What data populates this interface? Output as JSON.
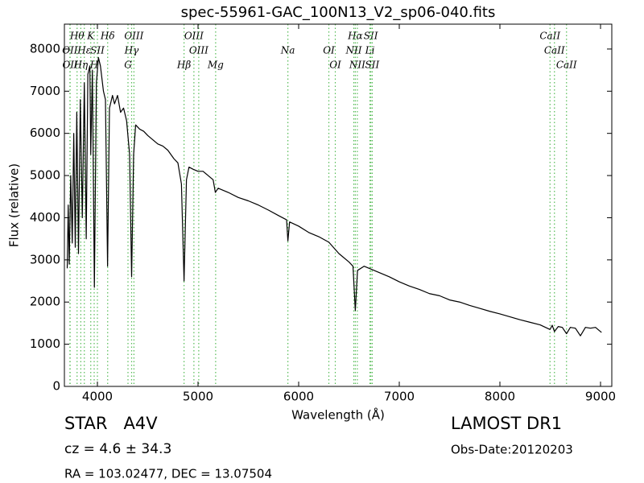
{
  "chart_data": {
    "type": "line",
    "title": "spec-55961-GAC_100N13_V2_sp06-040.fits",
    "x_label": "Wavelength (Å)",
    "y_label": "Flux (relative)",
    "color": "#000000",
    "line_marker_color": "#55bb55",
    "xlim": [
      3672,
      9112
    ],
    "ylim": [
      0,
      8590
    ],
    "xticks": [
      4000,
      5000,
      6000,
      7000,
      8000,
      9000
    ],
    "yticks": [
      0,
      1000,
      2000,
      3000,
      4000,
      5000,
      6000,
      7000,
      8000
    ],
    "x": [
      3700,
      3710,
      3720,
      3735,
      3750,
      3765,
      3780,
      3795,
      3812,
      3830,
      3850,
      3870,
      3889,
      3905,
      3925,
      3934,
      3950,
      3970,
      3990,
      4010,
      4030,
      4060,
      4080,
      4101,
      4120,
      4150,
      4170,
      4200,
      4230,
      4260,
      4290,
      4320,
      4340,
      4360,
      4380,
      4420,
      4460,
      4500,
      4550,
      4600,
      4650,
      4700,
      4760,
      4800,
      4835,
      4861,
      4885,
      4910,
      4950,
      5000,
      5050,
      5100,
      5150,
      5172,
      5200,
      5300,
      5400,
      5500,
      5600,
      5700,
      5800,
      5880,
      5893,
      5910,
      6000,
      6100,
      6200,
      6300,
      6400,
      6500,
      6540,
      6563,
      6585,
      6650,
      6700,
      6800,
      6900,
      7000,
      7100,
      7200,
      7300,
      7400,
      7500,
      7600,
      7700,
      7800,
      7900,
      8000,
      8100,
      8200,
      8300,
      8400,
      8498,
      8520,
      8542,
      8580,
      8620,
      8662,
      8700,
      8750,
      8800,
      8850,
      8900,
      8950,
      9000,
      9010
    ],
    "values": [
      2800,
      4300,
      2900,
      5000,
      3400,
      6000,
      3300,
      6500,
      3150,
      6800,
      4000,
      7200,
      3500,
      7400,
      7600,
      5500,
      7500,
      2350,
      7200,
      7800,
      7600,
      7000,
      6800,
      2850,
      6600,
      6900,
      6700,
      6900,
      6500,
      6600,
      6300,
      5500,
      2600,
      5500,
      6200,
      6100,
      6050,
      5950,
      5850,
      5750,
      5700,
      5600,
      5400,
      5300,
      4800,
      2500,
      4900,
      5200,
      5150,
      5100,
      5100,
      5000,
      4900,
      4600,
      4700,
      4600,
      4480,
      4400,
      4300,
      4180,
      4050,
      3950,
      3450,
      3900,
      3800,
      3650,
      3550,
      3420,
      3150,
      2950,
      2850,
      1800,
      2750,
      2850,
      2800,
      2700,
      2600,
      2480,
      2380,
      2300,
      2200,
      2150,
      2050,
      2000,
      1920,
      1850,
      1780,
      1720,
      1650,
      1580,
      1520,
      1460,
      1350,
      1450,
      1300,
      1420,
      1400,
      1250,
      1400,
      1380,
      1200,
      1400,
      1380,
      1400,
      1300,
      1280
    ],
    "line_label_rows": [
      [
        {
          "label": "Hθ",
          "wavelength": 3798
        },
        {
          "label": "K",
          "wavelength": 3934
        },
        {
          "label": "Hδ",
          "wavelength": 4102
        },
        {
          "label": "OIII",
          "wavelength": 4363
        },
        {
          "label": "OIII",
          "wavelength": 4959
        },
        {
          "label": "Hα",
          "wavelength": 6563
        },
        {
          "label": "SII",
          "wavelength": 6717
        },
        {
          "label": "CaII",
          "wavelength": 8498
        }
      ],
      [
        {
          "label": "OII",
          "wavelength": 3727
        },
        {
          "label": "Hε",
          "wavelength": 3870
        },
        {
          "label": "SII",
          "wavelength": 4000
        },
        {
          "label": "Hγ",
          "wavelength": 4340
        },
        {
          "label": "OIII",
          "wavelength": 5007
        },
        {
          "label": "Na",
          "wavelength": 5893
        },
        {
          "label": "OI",
          "wavelength": 6300
        },
        {
          "label": "NII",
          "wavelength": 6548
        },
        {
          "label": "Li",
          "wavelength": 6708
        },
        {
          "label": "CaII",
          "wavelength": 8542
        }
      ],
      [
        {
          "label": "OII",
          "wavelength": 3729
        },
        {
          "label": "Hη",
          "wavelength": 3835
        },
        {
          "label": "H",
          "wavelength": 3968
        },
        {
          "label": "G",
          "wavelength": 4304
        },
        {
          "label": "Hβ",
          "wavelength": 4861
        },
        {
          "label": "Mg",
          "wavelength": 5175
        },
        {
          "label": "OI",
          "wavelength": 6364
        },
        {
          "label": "NII",
          "wavelength": 6583
        },
        {
          "label": "SII",
          "wavelength": 6731
        },
        {
          "label": "CaII",
          "wavelength": 8662
        }
      ]
    ],
    "annotations": {
      "object_class": "STAR   A4V",
      "redshift": "cz = 4.6 ± 34.3",
      "coordinates": "RA = 103.02477, DEC = 13.07504",
      "release": "LAMOST DR1",
      "obs_date": "Obs-Date:20120203"
    }
  }
}
